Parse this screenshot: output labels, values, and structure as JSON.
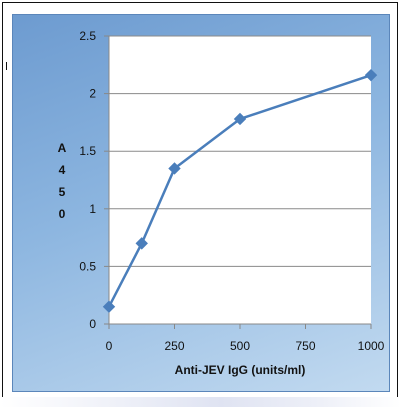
{
  "chart_data": {
    "type": "line",
    "title": "",
    "xlabel": "Anti-JEV IgG  (units/ml)",
    "ylabel_chars": [
      "A",
      "4",
      "5",
      "0"
    ],
    "x_ticks": [
      "0",
      "250",
      "500",
      "750",
      "1000"
    ],
    "y_ticks": [
      "0",
      "0.5",
      "1",
      "1.5",
      "2",
      "2.5"
    ],
    "xlim": [
      0,
      1000
    ],
    "ylim": [
      0,
      2.5
    ],
    "grid": "horizontal",
    "series": [
      {
        "x": [
          0,
          125,
          250,
          500,
          1000
        ],
        "y": [
          0.15,
          0.7,
          1.35,
          1.78,
          2.16
        ],
        "color": "#4a7ebb",
        "marker": "diamond"
      }
    ]
  }
}
